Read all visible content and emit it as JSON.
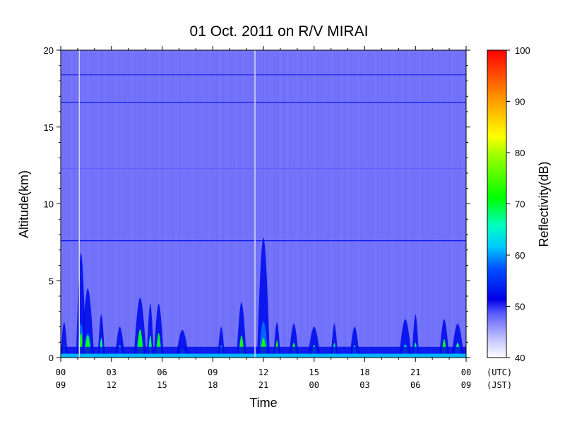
{
  "chart_data": {
    "type": "heatmap",
    "title": "01 Oct. 2011  on R/V MIRAI",
    "xlabel": "Time",
    "ylabel": "Altitude(km)",
    "xlim": [
      0,
      24
    ],
    "ylim": [
      0,
      20
    ],
    "yticks": [
      0,
      5,
      10,
      15,
      20
    ],
    "xticks": [
      {
        "hour": 0,
        "utc": "00",
        "jst": "09"
      },
      {
        "hour": 3,
        "utc": "03",
        "jst": "12"
      },
      {
        "hour": 6,
        "utc": "06",
        "jst": "15"
      },
      {
        "hour": 9,
        "utc": "09",
        "jst": "18"
      },
      {
        "hour": 12,
        "utc": "12",
        "jst": "21"
      },
      {
        "hour": 15,
        "utc": "15",
        "jst": "00"
      },
      {
        "hour": 18,
        "utc": "18",
        "jst": "03"
      },
      {
        "hour": 21,
        "utc": "21",
        "jst": "06"
      },
      {
        "hour": 24,
        "utc": "00",
        "jst": "09"
      }
    ],
    "x_axis_row_labels": {
      "utc": "(UTC)",
      "jst": "(JST)"
    },
    "colorbar": {
      "label": "Reflectivity(dB)",
      "range": [
        40,
        100
      ],
      "ticks": [
        40,
        50,
        60,
        70,
        80,
        90,
        100
      ],
      "colormap": [
        "#ffffff",
        "#3b3bff",
        "#0000e6",
        "#00c8ff",
        "#00ff00",
        "#ffff00",
        "#ff8000",
        "#ff0000"
      ]
    },
    "background_reflectivity_dB": 45,
    "horizontal_lines": [
      {
        "altitude_km": 18.4,
        "dB": 50
      },
      {
        "altitude_km": 16.6,
        "dB": 52
      },
      {
        "altitude_km": 12.3,
        "dB": 48
      },
      {
        "altitude_km": 7.6,
        "dB": 52
      }
    ],
    "missing_data_lines_hours": [
      1.1,
      11.5
    ],
    "cloud_columns": [
      {
        "center_hour": 0.2,
        "top_km": 2.3,
        "core_top_km": 0.8,
        "core_dB": 68
      },
      {
        "center_hour": 1.2,
        "top_km": 6.8,
        "core_top_km": 2.0,
        "core_dB": 72
      },
      {
        "center_hour": 1.6,
        "top_km": 4.5,
        "core_top_km": 1.8,
        "core_dB": 70
      },
      {
        "center_hour": 2.4,
        "top_km": 2.8,
        "core_top_km": 1.6,
        "core_dB": 68
      },
      {
        "center_hour": 3.5,
        "top_km": 2.0,
        "core_top_km": 1.0,
        "core_dB": 65
      },
      {
        "center_hour": 4.7,
        "top_km": 3.9,
        "core_top_km": 2.3,
        "core_dB": 70
      },
      {
        "center_hour": 5.3,
        "top_km": 3.5,
        "core_top_km": 1.8,
        "core_dB": 68
      },
      {
        "center_hour": 5.8,
        "top_km": 3.5,
        "core_top_km": 2.0,
        "core_dB": 70
      },
      {
        "center_hour": 7.2,
        "top_km": 1.8,
        "core_top_km": 0.8,
        "core_dB": 65
      },
      {
        "center_hour": 9.5,
        "top_km": 2.0,
        "core_top_km": 1.0,
        "core_dB": 68
      },
      {
        "center_hour": 10.7,
        "top_km": 3.6,
        "core_top_km": 1.8,
        "core_dB": 72
      },
      {
        "center_hour": 12.0,
        "top_km": 7.8,
        "core_top_km": 1.6,
        "core_dB": 72
      },
      {
        "center_hour": 12.8,
        "top_km": 2.3,
        "core_top_km": 1.4,
        "core_dB": 72
      },
      {
        "center_hour": 13.8,
        "top_km": 2.2,
        "core_top_km": 1.2,
        "core_dB": 70
      },
      {
        "center_hour": 15.0,
        "top_km": 2.0,
        "core_top_km": 1.0,
        "core_dB": 68
      },
      {
        "center_hour": 16.2,
        "top_km": 2.2,
        "core_top_km": 1.2,
        "core_dB": 68
      },
      {
        "center_hour": 17.4,
        "top_km": 2.0,
        "core_top_km": 1.0,
        "core_dB": 66
      },
      {
        "center_hour": 20.4,
        "top_km": 2.5,
        "core_top_km": 1.0,
        "core_dB": 68
      },
      {
        "center_hour": 21.0,
        "top_km": 2.8,
        "core_top_km": 1.2,
        "core_dB": 68
      },
      {
        "center_hour": 22.7,
        "top_km": 2.5,
        "core_top_km": 1.5,
        "core_dB": 70
      },
      {
        "center_hour": 23.5,
        "top_km": 2.2,
        "core_top_km": 1.2,
        "core_dB": 68
      }
    ],
    "surface_layer": {
      "top_km": 0.7,
      "dB": 62
    }
  }
}
